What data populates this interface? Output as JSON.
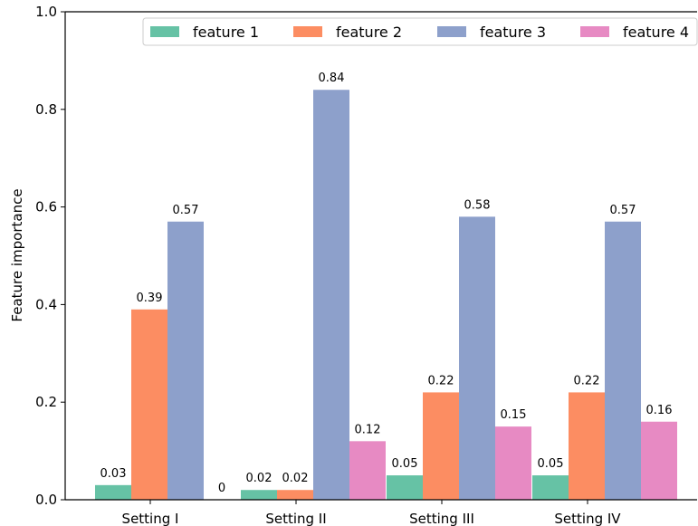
{
  "chart_data": {
    "type": "bar",
    "title": "",
    "xlabel": "",
    "ylabel": "Feature importance",
    "ylim": [
      0,
      1.0
    ],
    "yticks": [
      "0.0",
      "0.2",
      "0.4",
      "0.6",
      "0.8",
      "1.0"
    ],
    "categories": [
      "Setting I",
      "Setting II",
      "Setting III",
      "Setting IV"
    ],
    "series": [
      {
        "name": "feature 1",
        "color": "#66c2a5",
        "values": [
          0.03,
          0.02,
          0.05,
          0.05
        ],
        "labels": [
          "0.03",
          "0.02",
          "0.05",
          "0.05"
        ]
      },
      {
        "name": "feature 2",
        "color": "#fc8d62",
        "values": [
          0.39,
          0.02,
          0.22,
          0.22
        ],
        "labels": [
          "0.39",
          "0.02",
          "0.22",
          "0.22"
        ]
      },
      {
        "name": "feature 3",
        "color": "#8da0cb",
        "values": [
          0.57,
          0.84,
          0.58,
          0.57
        ],
        "labels": [
          "0.57",
          "0.84",
          "0.58",
          "0.57"
        ]
      },
      {
        "name": "feature 4",
        "color": "#e78ac3",
        "values": [
          0,
          0.12,
          0.15,
          0.16
        ],
        "labels": [
          "0",
          "0.12",
          "0.15",
          "0.16"
        ]
      }
    ],
    "legend_position": "top-right",
    "grid": false
  }
}
